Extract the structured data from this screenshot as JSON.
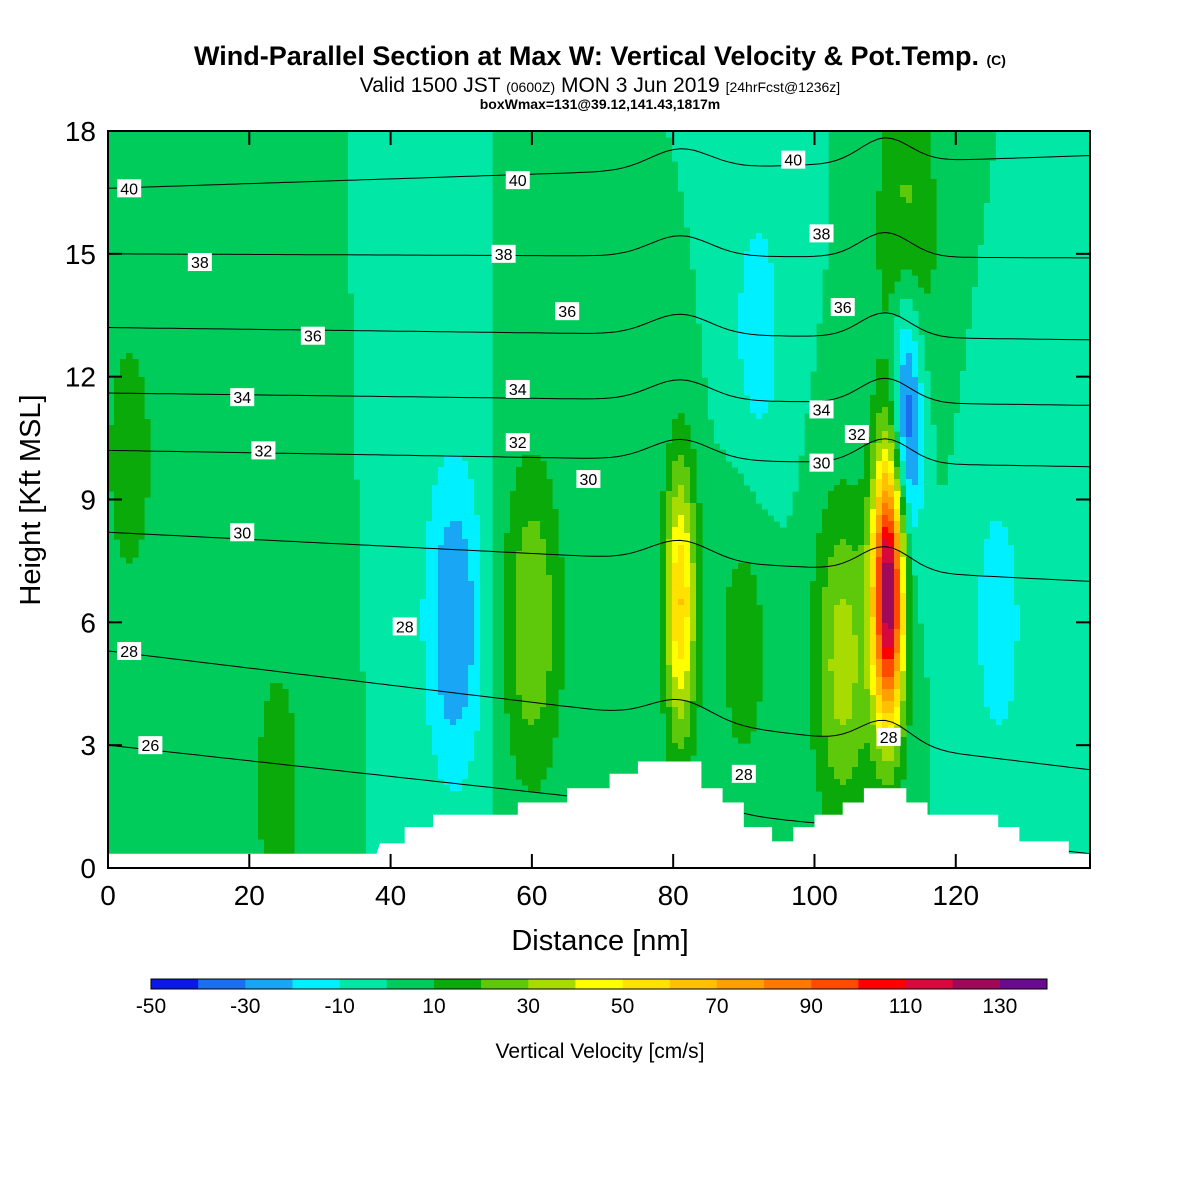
{
  "header": {
    "title": "Wind-Parallel Section at Max W: Vertical Velocity & Pot.Temp.",
    "copyright": "(C)",
    "valid_main": "Valid 1500 JST",
    "valid_z": "(0600Z)",
    "valid_date": "MON 3 Jun 2019",
    "forecast": "[24hrFcst@1236z]",
    "box_info": "boxWmax=131@39.12,141.43,1817m"
  },
  "chart_data": {
    "type": "heatmap",
    "xlabel": "Distance [nm]",
    "ylabel": "Height [Kft MSL]",
    "xlim": [
      0,
      139
    ],
    "ylim": [
      0,
      18
    ],
    "x_ticks": [
      0,
      20,
      40,
      60,
      80,
      100,
      120
    ],
    "y_ticks": [
      0,
      3,
      6,
      9,
      12,
      15,
      18
    ],
    "colorbar": {
      "label": "Vertical Velocity [cm/s]",
      "levels": [
        -50,
        -40,
        -30,
        -20,
        -10,
        0,
        10,
        20,
        30,
        40,
        50,
        60,
        70,
        80,
        90,
        100,
        110,
        120,
        130,
        140
      ],
      "tick_labels": [
        "-50",
        "-30",
        "-10",
        "10",
        "30",
        "50",
        "70",
        "90",
        "110",
        "130"
      ],
      "colors": [
        "#0a18e8",
        "#1a6ef0",
        "#19a6f5",
        "#00f0ff",
        "#00e7a6",
        "#00cc5c",
        "#0aaa0a",
        "#5ec80a",
        "#a8dc00",
        "#ffff00",
        "#ffe200",
        "#ffc000",
        "#ffa000",
        "#ff7800",
        "#ff4a00",
        "#ff0000",
        "#d8083c",
        "#a0085a",
        "#6a0a8e"
      ]
    },
    "background_w": 0,
    "updrafts": [
      {
        "x": 81,
        "z": 6.5,
        "w_max": 60
      },
      {
        "x": 110.5,
        "z": 6.8,
        "w_max": 131
      },
      {
        "x": 104,
        "z": 5,
        "w_max": 35
      },
      {
        "x": 60,
        "z": 6,
        "w_max": 30
      },
      {
        "x": 113,
        "z": 15.5,
        "w_max": 25
      },
      {
        "x": 90,
        "z": 5.5,
        "w_max": 15
      },
      {
        "x": 3,
        "z": 10,
        "w_max": 15
      },
      {
        "x": 24,
        "z": 2,
        "w_max": 15
      }
    ],
    "downdrafts": [
      {
        "x": 49,
        "z": 6,
        "w_min": -30
      },
      {
        "x": 113,
        "z": 11,
        "w_min": -45
      },
      {
        "x": 92,
        "z": 13,
        "w_min": -15
      },
      {
        "x": 126,
        "z": 6,
        "w_min": -15
      }
    ],
    "terrain_kft": [
      [
        0,
        0.35
      ],
      [
        38,
        0.35
      ],
      [
        38.5,
        0.6
      ],
      [
        42,
        0.6
      ],
      [
        42,
        1.0
      ],
      [
        46,
        1.0
      ],
      [
        46,
        1.3
      ],
      [
        58,
        1.3
      ],
      [
        58,
        1.6
      ],
      [
        65,
        1.6
      ],
      [
        65,
        1.95
      ],
      [
        71,
        1.95
      ],
      [
        71,
        2.3
      ],
      [
        75,
        2.3
      ],
      [
        75,
        2.6
      ],
      [
        84,
        2.6
      ],
      [
        84,
        1.95
      ],
      [
        87,
        1.95
      ],
      [
        87,
        1.6
      ],
      [
        90,
        1.6
      ],
      [
        90,
        1.0
      ],
      [
        94,
        1.0
      ],
      [
        94,
        0.65
      ],
      [
        97,
        0.65
      ],
      [
        97,
        1.0
      ],
      [
        100,
        1.0
      ],
      [
        100,
        1.3
      ],
      [
        104,
        1.3
      ],
      [
        104,
        1.6
      ],
      [
        107,
        1.6
      ],
      [
        107,
        1.95
      ],
      [
        113,
        1.95
      ],
      [
        113,
        1.6
      ],
      [
        116,
        1.6
      ],
      [
        116,
        1.3
      ],
      [
        126,
        1.3
      ],
      [
        126,
        1.0
      ],
      [
        129,
        1.0
      ],
      [
        129,
        0.65
      ],
      [
        136,
        0.65
      ],
      [
        136,
        0.35
      ],
      [
        139,
        0.35
      ]
    ],
    "theta_contours": [
      {
        "value": 26,
        "label": "26",
        "z0": 3.0,
        "z1": 0.35
      },
      {
        "value": 28,
        "label": "28",
        "z0": 5.3,
        "z1": 2.4
      },
      {
        "value": 30,
        "label": "30",
        "z0": 8.2,
        "z1": 7.0
      },
      {
        "value": 32,
        "label": "32",
        "z0": 10.2,
        "z1": 9.8
      },
      {
        "value": 34,
        "label": "34",
        "z0": 11.6,
        "z1": 11.3
      },
      {
        "value": 36,
        "label": "36",
        "z0": 13.2,
        "z1": 12.9
      },
      {
        "value": 38,
        "label": "38",
        "z0": 15.0,
        "z1": 14.9
      },
      {
        "value": 40,
        "label": "40",
        "z0": 16.6,
        "z1": 17.4
      }
    ],
    "contour_labels": [
      {
        "text": "40",
        "x": 3,
        "z": 16.6
      },
      {
        "text": "40",
        "x": 58,
        "z": 16.8
      },
      {
        "text": "40",
        "x": 97,
        "z": 17.3
      },
      {
        "text": "38",
        "x": 13,
        "z": 14.8
      },
      {
        "text": "38",
        "x": 56,
        "z": 15.0
      },
      {
        "text": "38",
        "x": 101,
        "z": 15.5
      },
      {
        "text": "36",
        "x": 29,
        "z": 13.0
      },
      {
        "text": "36",
        "x": 65,
        "z": 13.6
      },
      {
        "text": "36",
        "x": 104,
        "z": 13.7
      },
      {
        "text": "34",
        "x": 19,
        "z": 11.5
      },
      {
        "text": "34",
        "x": 58,
        "z": 11.7
      },
      {
        "text": "34",
        "x": 101,
        "z": 11.2
      },
      {
        "text": "32",
        "x": 22,
        "z": 10.2
      },
      {
        "text": "32",
        "x": 58,
        "z": 10.4
      },
      {
        "text": "32",
        "x": 106,
        "z": 10.6
      },
      {
        "text": "30",
        "x": 19,
        "z": 8.2
      },
      {
        "text": "30",
        "x": 68,
        "z": 9.5
      },
      {
        "text": "30",
        "x": 101,
        "z": 9.9
      },
      {
        "text": "28",
        "x": 3,
        "z": 5.3
      },
      {
        "text": "28",
        "x": 42,
        "z": 5.9
      },
      {
        "text": "28",
        "x": 90,
        "z": 2.3
      },
      {
        "text": "28",
        "x": 110.5,
        "z": 3.2
      },
      {
        "text": "26",
        "x": 6,
        "z": 3.0
      }
    ]
  }
}
